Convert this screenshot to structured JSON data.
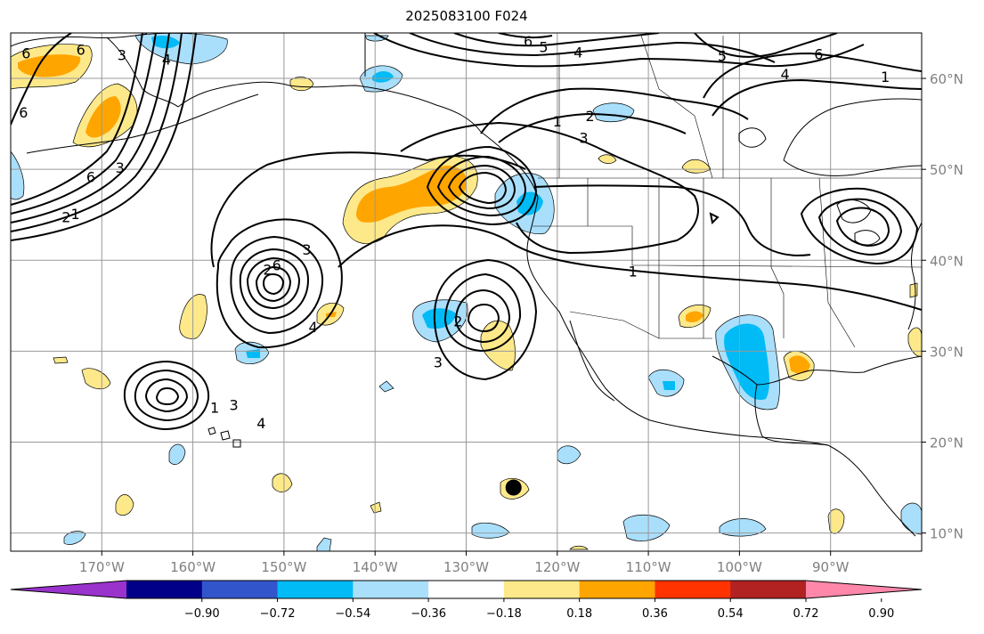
{
  "title": "2025083100 F024",
  "map": {
    "projection": "cylindrical",
    "lon_range": [
      -180,
      -80
    ],
    "lat_range": [
      8,
      65
    ],
    "gridlines": true,
    "lon_ticks": [
      {
        "value": -170,
        "label": "170°W"
      },
      {
        "value": -160,
        "label": "160°W"
      },
      {
        "value": -150,
        "label": "150°W"
      },
      {
        "value": -140,
        "label": "140°W"
      },
      {
        "value": -130,
        "label": "130°W"
      },
      {
        "value": -120,
        "label": "120°W"
      },
      {
        "value": -110,
        "label": "110°W"
      },
      {
        "value": -100,
        "label": "100°W"
      },
      {
        "value": -90,
        "label": "90°W"
      }
    ],
    "lat_ticks": [
      {
        "value": 60,
        "label": "60°N"
      },
      {
        "value": 50,
        "label": "50°N"
      },
      {
        "value": 40,
        "label": "40°N"
      },
      {
        "value": 30,
        "label": "30°N"
      },
      {
        "value": 20,
        "label": "20°N"
      },
      {
        "value": 10,
        "label": "10°N"
      }
    ],
    "marker": {
      "lon": -124.8,
      "lat": 15.0,
      "color": "#000000"
    }
  },
  "colorbar": {
    "colors": [
      "#9933cc",
      "#000088",
      "#3355cc",
      "#00bbf5",
      "#aadffc",
      "#ffffff",
      "#fde98a",
      "#ffa500",
      "#ff3300",
      "#b22222",
      "#ff88aa"
    ],
    "tick_labels": [
      "−0.90",
      "−0.72",
      "−0.54",
      "−0.36",
      "−0.18",
      "0.18",
      "0.36",
      "0.54",
      "0.72",
      "0.90"
    ],
    "extend": "both"
  },
  "contour_labels": [
    {
      "text": "6",
      "lon": -178.3,
      "lat": 62.8
    },
    {
      "text": "6",
      "lon": -178.6,
      "lat": 56.3
    },
    {
      "text": "6",
      "lon": -172.3,
      "lat": 63.2
    },
    {
      "text": "3",
      "lon": -167.8,
      "lat": 62.6
    },
    {
      "text": "4",
      "lon": -162.9,
      "lat": 62.1
    },
    {
      "text": "6",
      "lon": -171.2,
      "lat": 49.2
    },
    {
      "text": "3",
      "lon": -168.0,
      "lat": 50.2
    },
    {
      "text": "1",
      "lon": -172.9,
      "lat": 45.1
    },
    {
      "text": "2",
      "lon": -173.9,
      "lat": 44.8
    },
    {
      "text": "3",
      "lon": -147.5,
      "lat": 41.2
    },
    {
      "text": "2",
      "lon": -151.8,
      "lat": 39.0
    },
    {
      "text": "6",
      "lon": -150.8,
      "lat": 39.5
    },
    {
      "text": "4",
      "lon": -146.8,
      "lat": 32.7
    },
    {
      "text": "1",
      "lon": -157.6,
      "lat": 23.8
    },
    {
      "text": "3",
      "lon": -155.5,
      "lat": 24.1
    },
    {
      "text": "4",
      "lon": -152.5,
      "lat": 22.1
    },
    {
      "text": "6",
      "lon": -123.2,
      "lat": 64.1
    },
    {
      "text": "5",
      "lon": -121.5,
      "lat": 63.5
    },
    {
      "text": "4",
      "lon": -117.7,
      "lat": 62.9
    },
    {
      "text": "5",
      "lon": -101.9,
      "lat": 62.5
    },
    {
      "text": "4",
      "lon": -95.0,
      "lat": 60.5
    },
    {
      "text": "6",
      "lon": -91.3,
      "lat": 62.7
    },
    {
      "text": "1",
      "lon": -84.0,
      "lat": 60.2
    },
    {
      "text": "1",
      "lon": -120.0,
      "lat": 55.3
    },
    {
      "text": "2",
      "lon": -116.4,
      "lat": 55.9
    },
    {
      "text": "3",
      "lon": -117.1,
      "lat": 53.5
    },
    {
      "text": "2",
      "lon": -130.9,
      "lat": 33.3
    },
    {
      "text": "3",
      "lon": -133.1,
      "lat": 28.8
    },
    {
      "text": "1",
      "lon": -111.7,
      "lat": 38.8
    }
  ]
}
